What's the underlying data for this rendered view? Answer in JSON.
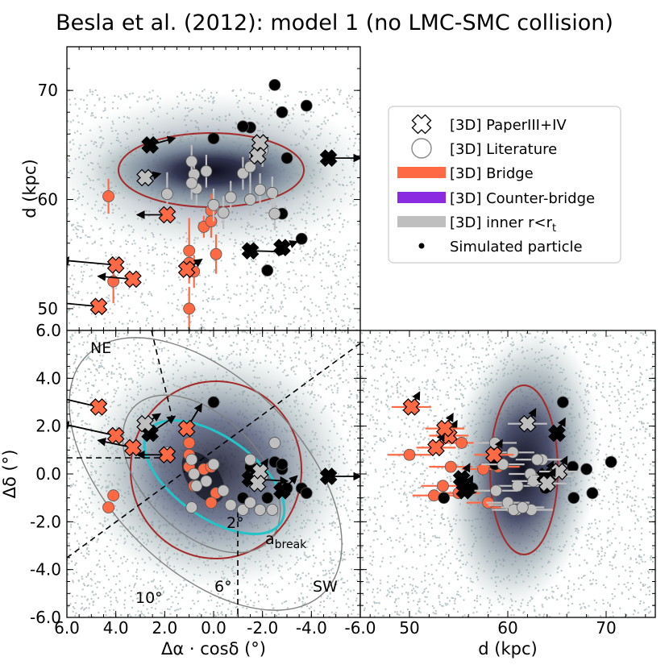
{
  "chart_data": {
    "title": "Besla et al. (2012): model 1 (no LMC-SMC collision)",
    "type": "scatter",
    "colors": {
      "bridge": "#ff6a45",
      "counter_bridge": "#8a2be2",
      "inner": "#bfbfbf",
      "contour": "#a52a2a",
      "ellipse_cyan": "#22c4c8",
      "ellipse_gray": "#808080",
      "cloud_core": "#10101e"
    },
    "legend": {
      "position": "right of top panel",
      "entries": [
        {
          "key": "paper",
          "label": "[3D] PaperIII+IV"
        },
        {
          "key": "lit",
          "label": "[3D] Literature"
        },
        {
          "key": "bridge",
          "label": "[3D] Bridge"
        },
        {
          "key": "counter",
          "label": "[3D] Counter-bridge"
        },
        {
          "key": "inner",
          "label": "[3D] inner r<r",
          "sub": "t"
        },
        {
          "key": "sim",
          "label": "Simulated particle"
        }
      ]
    },
    "panels": {
      "top": {
        "xlim": [
          6,
          -6
        ],
        "ylim": [
          48,
          74
        ],
        "ylabel": "d (kpc)",
        "yticks": [
          {
            "v": 50,
            "l": "50"
          },
          {
            "v": 60,
            "l": "60"
          },
          {
            "v": 70,
            "l": "70"
          }
        ]
      },
      "bottom_left": {
        "xlim": [
          6,
          -6
        ],
        "ylim": [
          -6,
          6
        ],
        "xlabel": "Δα · cosδ (°)",
        "ylabel": "Δδ (°)",
        "xticks": [
          {
            "v": 6,
            "l": "6.0"
          },
          {
            "v": 4,
            "l": "4.0"
          },
          {
            "v": 2,
            "l": "2.0"
          },
          {
            "v": 0,
            "l": "0.0"
          },
          {
            "v": -2,
            "l": "-2.0"
          },
          {
            "v": -4,
            "l": "-4.0"
          },
          {
            "v": -6,
            "l": "-6.0"
          }
        ],
        "yticks": [
          {
            "v": 6,
            "l": "6.0"
          },
          {
            "v": 4,
            "l": "4.0"
          },
          {
            "v": 2,
            "l": "2.0"
          },
          {
            "v": 0,
            "l": "0.0"
          },
          {
            "v": -2,
            "l": "-2.0"
          },
          {
            "v": -4,
            "l": "-4.0"
          },
          {
            "v": -6,
            "l": "-6.0"
          }
        ],
        "annotations": {
          "ne": "NE",
          "sw": "SW",
          "r10": "10°",
          "r6": "6°",
          "r2": "2°",
          "abreak": "a",
          "abreak_sub": "break"
        }
      },
      "bottom_right": {
        "xlim": [
          45,
          75
        ],
        "ylim": [
          -6,
          6
        ],
        "xlabel": "d (kpc)",
        "xticks": [
          {
            "v": 50,
            "l": "50"
          },
          {
            "v": 60,
            "l": "60"
          },
          {
            "v": 70,
            "l": "70"
          }
        ]
      }
    },
    "points": [
      {
        "s": "P",
        "c": "bridge",
        "ra": 4.7,
        "dec": 2.8,
        "d": 50.2,
        "dx": 2.5,
        "ev": 0.6
      },
      {
        "s": "P",
        "c": "bridge",
        "ra": 4.0,
        "dec": 1.6,
        "d": 54.0,
        "dx": 2.2,
        "ev": 0.5
      },
      {
        "s": "P",
        "c": "bridge",
        "ra": 3.3,
        "dec": 1.1,
        "d": 52.7,
        "dx": 1.4,
        "ev": 0.3
      },
      {
        "s": "P",
        "c": "bridge",
        "ra": 1.9,
        "dec": 0.8,
        "d": 58.6,
        "dx": 1.2,
        "ev": 0.0
      },
      {
        "s": "P",
        "c": "bridge",
        "ra": 1.1,
        "dec": 1.9,
        "d": 53.6,
        "dx": -0.6,
        "ev": 1.0
      },
      {
        "s": "P",
        "c": "counter",
        "ra": 2.6,
        "dec": 1.7,
        "d": 65.0,
        "dx": -1.0,
        "ev": 0.7
      },
      {
        "s": "P",
        "c": "counter",
        "ra": -1.5,
        "dec": -0.2,
        "d": 55.3,
        "dx": -1.5,
        "ev": -0.1
      },
      {
        "s": "P",
        "c": "counter",
        "ra": -2.8,
        "dec": -0.7,
        "d": 55.6,
        "dx": -0.6,
        "ev": 0.6
      },
      {
        "s": "P",
        "c": "counter",
        "ra": -4.7,
        "dec": -0.1,
        "d": 63.8,
        "dx": -1.3,
        "ev": 0.0
      },
      {
        "s": "P",
        "c": "inner",
        "ra": 2.8,
        "dec": 2.1,
        "d": 62.0,
        "dx": -0.6,
        "ev": 0.4
      },
      {
        "s": "P",
        "c": "inner",
        "ra": -1.9,
        "dec": 0.1,
        "d": 65.2,
        "dx": -0.3,
        "ev": 0.5
      },
      {
        "s": "P",
        "c": "inner",
        "ra": -1.8,
        "dec": -0.4,
        "d": 64.0,
        "dx": 0.0,
        "ev": 0.0
      },
      {
        "s": "L",
        "c": "bridge",
        "ra": 4.3,
        "dec": -1.4,
        "d": 60.3,
        "e": 1.6
      },
      {
        "s": "L",
        "c": "bridge",
        "ra": 4.1,
        "dec": -0.9,
        "d": 52.5,
        "e": 2.0
      },
      {
        "s": "L",
        "c": "bridge",
        "ra": 1.0,
        "dec": 1.3,
        "d": 55.3,
        "e": 3.0
      },
      {
        "s": "L",
        "c": "bridge",
        "ra": 1.0,
        "dec": 0.8,
        "d": 50.0,
        "e": 2.0
      },
      {
        "s": "L",
        "c": "bridge",
        "ra": 1.0,
        "dec": 0.3,
        "d": 54.2,
        "e": 1.5
      },
      {
        "s": "L",
        "c": "bridge",
        "ra": 0.8,
        "dec": -0.5,
        "d": 53.4,
        "e": 1.5
      },
      {
        "s": "L",
        "c": "bridge",
        "ra": 0.4,
        "dec": 0.2,
        "d": 57.5,
        "e": 1.0
      },
      {
        "s": "L",
        "c": "bridge",
        "ra": 0.1,
        "dec": 0.3,
        "d": 59.0,
        "e": 1.5
      },
      {
        "s": "L",
        "c": "bridge",
        "ra": -0.1,
        "dec": -0.8,
        "d": 55.0,
        "e": 1.8
      },
      {
        "s": "L",
        "c": "bridge",
        "ra": 0.1,
        "dec": -1.2,
        "d": 58.0,
        "e": 1.5
      },
      {
        "s": "L",
        "c": "counter",
        "ra": -2.5,
        "dec": 0.5,
        "d": 70.5,
        "e": 2.5
      },
      {
        "s": "L",
        "c": "counter",
        "ra": -2.8,
        "dec": 0.2,
        "d": 68.0,
        "e": 2.5
      },
      {
        "s": "L",
        "c": "counter",
        "ra": -1.5,
        "dec": 0.3,
        "d": 66.6,
        "e": 1.5
      },
      {
        "s": "L",
        "c": "counter",
        "ra": -3.0,
        "dec": -0.6,
        "d": 63.8,
        "e": 2.0
      },
      {
        "s": "L",
        "c": "counter",
        "ra": -2.2,
        "dec": -1.0,
        "d": 53.5,
        "e": 1.5
      },
      {
        "s": "L",
        "c": "counter",
        "ra": -3.6,
        "dec": -0.6,
        "d": 56.4,
        "e": 1.0
      },
      {
        "s": "L",
        "c": "counter",
        "ra": -2.8,
        "dec": 0.4,
        "d": 58.7,
        "e": 1.0
      },
      {
        "s": "L",
        "c": "counter",
        "ra": 0.0,
        "dec": 3.0,
        "d": 65.6,
        "e": 1.0
      },
      {
        "s": "L",
        "c": "counter",
        "ra": -1.2,
        "dec": -1.0,
        "d": 66.7,
        "e": 1.0
      },
      {
        "s": "L",
        "c": "counter",
        "ra": -3.8,
        "dec": -0.8,
        "d": 68.6,
        "e": 1.0
      },
      {
        "s": "L",
        "c": "inner",
        "ra": 1.9,
        "dec": 0.9,
        "d": 60.5,
        "e": 2.0
      },
      {
        "s": "L",
        "c": "inner",
        "ra": 0.9,
        "dec": 0.6,
        "d": 63.5,
        "e": 1.5
      },
      {
        "s": "L",
        "c": "inner",
        "ra": 0.8,
        "dec": 0.0,
        "d": 62.3,
        "e": 1.5
      },
      {
        "s": "L",
        "c": "inner",
        "ra": 0.7,
        "dec": -0.5,
        "d": 61.0,
        "e": 1.5
      },
      {
        "s": "L",
        "c": "inner",
        "ra": 0.3,
        "dec": -0.3,
        "d": 62.6,
        "e": 1.5
      },
      {
        "s": "L",
        "c": "inner",
        "ra": 0.0,
        "dec": 0.4,
        "d": 59.5,
        "e": 1.5
      },
      {
        "s": "L",
        "c": "inner",
        "ra": -0.4,
        "dec": -0.7,
        "d": 58.8,
        "e": 1.5
      },
      {
        "s": "L",
        "c": "inner",
        "ra": -0.7,
        "dec": -1.3,
        "d": 60.2,
        "e": 1.5
      },
      {
        "s": "L",
        "c": "inner",
        "ra": -1.2,
        "dec": -1.5,
        "d": 62.4,
        "e": 1.5
      },
      {
        "s": "L",
        "c": "inner",
        "ra": -1.5,
        "dec": -1.2,
        "d": 60.0,
        "e": 1.5
      },
      {
        "s": "L",
        "c": "inner",
        "ra": -1.9,
        "dec": -1.5,
        "d": 60.9,
        "e": 1.5
      },
      {
        "s": "L",
        "c": "inner",
        "ra": -2.4,
        "dec": -1.5,
        "d": 60.6,
        "e": 1.5
      },
      {
        "s": "L",
        "c": "inner",
        "ra": -1.5,
        "dec": 0.6,
        "d": 63.0,
        "e": 1.5
      },
      {
        "s": "L",
        "c": "inner",
        "ra": -2.0,
        "dec": -0.1,
        "d": 64.5,
        "e": 1.5
      },
      {
        "s": "L",
        "c": "inner",
        "ra": -2.5,
        "dec": 1.3,
        "d": 58.7,
        "e": 1.5
      },
      {
        "s": "L",
        "c": "inner",
        "ra": 0.9,
        "dec": -1.4,
        "d": 61.5,
        "e": 1.5
      }
    ]
  }
}
